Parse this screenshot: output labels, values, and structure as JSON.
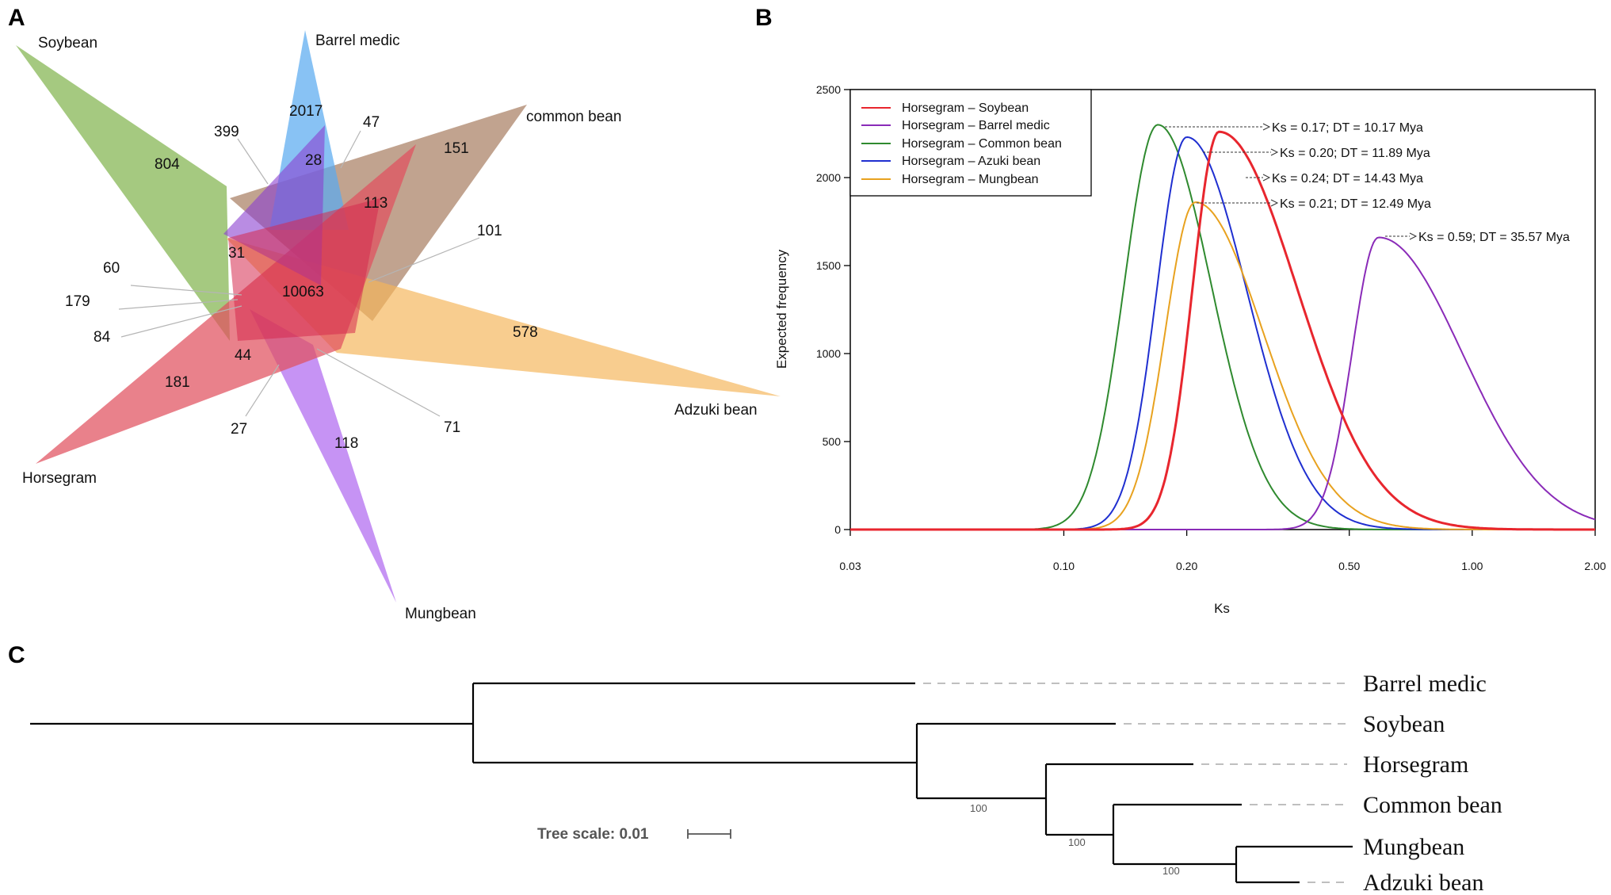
{
  "panel_labels": {
    "a": "A",
    "b": "B",
    "c": "C"
  },
  "venn": {
    "sets": [
      {
        "name": "Soybean",
        "color": "#7fb24a",
        "unique": "804"
      },
      {
        "name": "Barrel medic",
        "color": "#5aaaf0",
        "unique": "2017"
      },
      {
        "name": "common bean",
        "color": "#a4775a",
        "unique": "151"
      },
      {
        "name": "Adzuki bean",
        "color": "#f5b55a",
        "unique": "578"
      },
      {
        "name": "Mungbean",
        "color": "#b069f0",
        "unique": "118"
      },
      {
        "name": "Horsegram",
        "color": "#e0505e",
        "unique": "181"
      }
    ],
    "overlap_counts": {
      "n399": "399",
      "n47": "47",
      "n28": "28",
      "n113": "113",
      "n101": "101",
      "n60": "60",
      "n31": "31",
      "n10063": "10063",
      "n179": "179",
      "n84": "84",
      "n44": "44",
      "n27": "27",
      "n71": "71"
    }
  },
  "chart_data": {
    "type": "line",
    "title": "",
    "xlabel": "Ks",
    "ylabel": "Expected frequency",
    "x_scale": "log",
    "xlim": [
      0.03,
      2.0
    ],
    "ylim": [
      0,
      2500
    ],
    "x_ticks": [
      "0.03",
      "0.10",
      "0.20",
      "0.50",
      "1.00",
      "2.00"
    ],
    "y_ticks": [
      "0",
      "500",
      "1000",
      "1500",
      "2000",
      "2500"
    ],
    "legend_position": "top-left",
    "series": [
      {
        "name": "Horsegram – Soybean",
        "color": "#e8262e",
        "peak_ks": 0.24,
        "peak_freq": 2260,
        "sigma_left": 0.15,
        "sigma_right": 0.44,
        "annotation": "Ks = 0.24; DT = 14.43 Mya"
      },
      {
        "name": "Horsegram – Barrel medic",
        "color": "#8a2bb8",
        "peak_ks": 0.59,
        "peak_freq": 1660,
        "sigma_left": 0.15,
        "sigma_right": 0.47,
        "annotation": "Ks = 0.59; DT = 35.57 Mya"
      },
      {
        "name": "Horsegram – Common bean",
        "color": "#2f8a2f",
        "peak_ks": 0.17,
        "peak_freq": 2300,
        "sigma_left": 0.19,
        "sigma_right": 0.3,
        "annotation": "Ks = 0.17; DT = 10.17 Mya"
      },
      {
        "name": "Horsegram – Azuki bean",
        "color": "#1f2fd0",
        "peak_ks": 0.2,
        "peak_freq": 2230,
        "sigma_left": 0.17,
        "sigma_right": 0.34,
        "annotation": "Ks = 0.20; DT = 11.89 Mya"
      },
      {
        "name": "Horsegram – Mungbean",
        "color": "#e8a21f",
        "peak_ks": 0.21,
        "peak_freq": 1860,
        "sigma_left": 0.17,
        "sigma_right": 0.38,
        "annotation": "Ks = 0.21; DT = 12.49 Mya"
      }
    ]
  },
  "tree": {
    "taxa": [
      "Barrel medic",
      "Soybean",
      "Horsegram",
      "Common bean",
      "Mungbean",
      "Adzuki bean"
    ],
    "bootstraps": [
      "100",
      "100",
      "100"
    ],
    "scale_label": "Tree scale: 0.01"
  }
}
